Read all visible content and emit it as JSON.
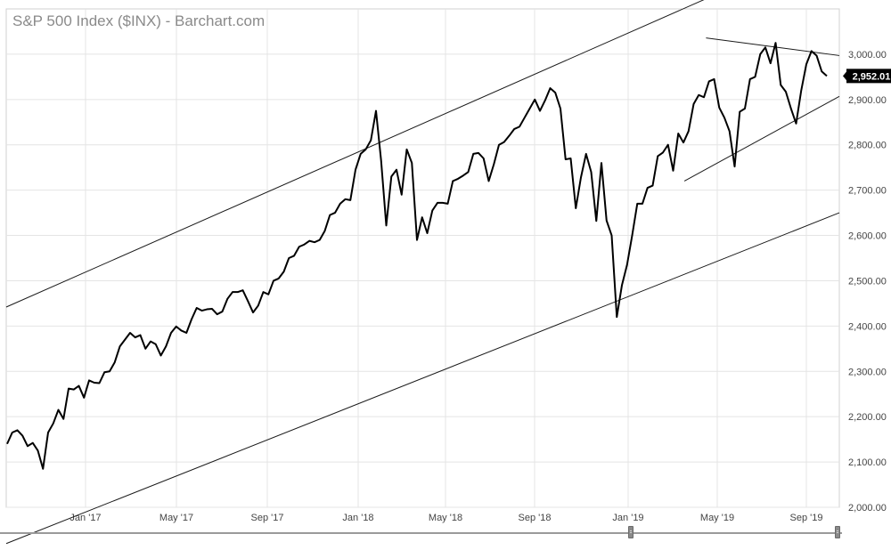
{
  "chart_data": {
    "type": "line",
    "title": "S&P 500 Index ($INX) - Barchart.com",
    "ylim": [
      2000,
      3100
    ],
    "y_ticks": [
      "2,000.00",
      "2,100.00",
      "2,200.00",
      "2,300.00",
      "2,400.00",
      "2,500.00",
      "2,600.00",
      "2,700.00",
      "2,800.00",
      "2,900.00",
      "3,000.00"
    ],
    "x_ticks": [
      "Jan '17",
      "May '17",
      "Sep '17",
      "Jan '18",
      "May '18",
      "Sep '18",
      "Jan '19",
      "May '19",
      "Sep '19"
    ],
    "last_value_label": "2,952.01",
    "grid": true,
    "colors": {
      "line": "#000000",
      "grid": "#e4e4e4",
      "axis_text": "#444444",
      "title": "#8a8a8a"
    },
    "series": [
      {
        "values": [
          2140,
          2165,
          2170,
          2158,
          2135,
          2142,
          2125,
          2085,
          2165,
          2185,
          2215,
          2195,
          2262,
          2260,
          2268,
          2242,
          2280,
          2275,
          2274,
          2298,
          2300,
          2320,
          2355,
          2370,
          2385,
          2375,
          2380,
          2350,
          2366,
          2360,
          2335,
          2355,
          2385,
          2399,
          2390,
          2385,
          2415,
          2440,
          2434,
          2437,
          2438,
          2426,
          2432,
          2460,
          2475,
          2475,
          2479,
          2455,
          2430,
          2445,
          2475,
          2470,
          2500,
          2505,
          2520,
          2550,
          2555,
          2575,
          2580,
          2588,
          2585,
          2590,
          2610,
          2645,
          2650,
          2670,
          2680,
          2678,
          2745,
          2780,
          2790,
          2810,
          2875,
          2765,
          2622,
          2730,
          2745,
          2690,
          2790,
          2760,
          2590,
          2640,
          2605,
          2655,
          2672,
          2672,
          2670,
          2720,
          2725,
          2732,
          2740,
          2780,
          2782,
          2770,
          2720,
          2757,
          2800,
          2806,
          2820,
          2835,
          2840,
          2860,
          2880,
          2900,
          2875,
          2898,
          2925,
          2915,
          2880,
          2768,
          2770,
          2660,
          2728,
          2780,
          2740,
          2632,
          2760,
          2633,
          2600,
          2420,
          2490,
          2535,
          2600,
          2670,
          2670,
          2705,
          2710,
          2775,
          2783,
          2800,
          2743,
          2825,
          2805,
          2830,
          2890,
          2910,
          2905,
          2940,
          2945,
          2882,
          2860,
          2830,
          2752,
          2873,
          2880,
          2945,
          2950,
          3000,
          3015,
          2980,
          3025,
          2932,
          2917,
          2880,
          2847,
          2920,
          2978,
          3007,
          2997,
          2962,
          2952
        ]
      }
    ],
    "annotations": {
      "channel_upper": [
        [
          0,
          2442
        ],
        [
          1,
          3252
        ]
      ],
      "channel_lower": [
        [
          0,
          1920
        ],
        [
          1,
          2650
        ]
      ],
      "triangle_upper": [
        [
          0.84,
          3036
        ],
        [
          1,
          2997
        ]
      ],
      "triangle_lower": [
        [
          0.814,
          2720
        ],
        [
          1,
          2907
        ]
      ]
    }
  }
}
